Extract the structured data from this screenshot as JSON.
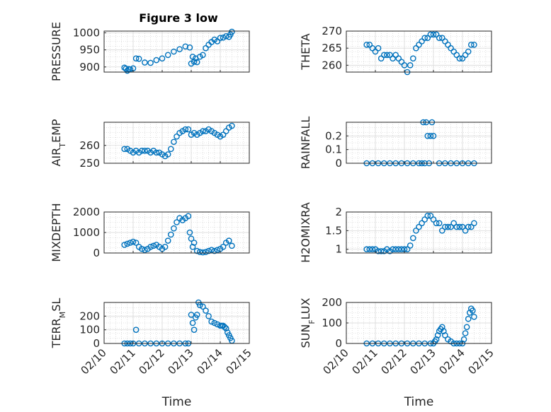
{
  "figure": {
    "title": "Figure 3 low"
  },
  "colors": {
    "marker": "#0072BD",
    "axis": "#262626",
    "grid": "#d9d9d9",
    "minor_grid": "#c8c8c8"
  },
  "chart_data": [
    {
      "type": "scatter",
      "ylabel": "PRESSURE",
      "ylim": [
        885,
        1005
      ],
      "yticks": [
        900,
        950,
        1000
      ],
      "xlim": [
        0,
        5
      ],
      "xticks": [
        "02/10",
        "02/11",
        "02/12",
        "02/13",
        "02/14",
        "02/15"
      ],
      "xlabel": "",
      "grid": "on (major + minor dotted)",
      "x": [
        0.7,
        0.75,
        0.8,
        0.85,
        0.9,
        1.0,
        1.1,
        1.2,
        1.4,
        1.6,
        1.8,
        2.0,
        2.2,
        2.4,
        2.6,
        2.8,
        2.95,
        3.0,
        3.05,
        3.1,
        3.15,
        3.2,
        3.3,
        3.4,
        3.5,
        3.6,
        3.7,
        3.8,
        3.9,
        4.0,
        4.1,
        4.2,
        4.3,
        4.35,
        4.4
      ],
      "y": [
        898,
        895,
        889,
        894,
        893,
        896,
        925,
        924,
        913,
        912,
        920,
        925,
        935,
        945,
        952,
        960,
        957,
        910,
        930,
        915,
        925,
        914,
        930,
        935,
        955,
        965,
        973,
        980,
        975,
        985,
        986,
        990,
        988,
        995,
        1003
      ]
    },
    {
      "type": "scatter",
      "ylabel": "THETA",
      "ylim": [
        258,
        270
      ],
      "yticks": [
        260,
        265,
        270
      ],
      "xlim": [
        0,
        5
      ],
      "xticks": [
        "02/10",
        "02/11",
        "02/12",
        "02/13",
        "02/14",
        "02/15"
      ],
      "xlabel": "",
      "grid": "on (major + minor dotted)",
      "x": [
        0.7,
        0.8,
        0.9,
        1.0,
        1.1,
        1.2,
        1.3,
        1.4,
        1.5,
        1.6,
        1.7,
        1.8,
        1.9,
        2.0,
        2.1,
        2.2,
        2.3,
        2.4,
        2.5,
        2.6,
        2.7,
        2.8,
        2.9,
        3.0,
        3.1,
        3.2,
        3.3,
        3.4,
        3.5,
        3.6,
        3.7,
        3.8,
        3.9,
        4.0,
        4.1,
        4.2,
        4.3,
        4.4
      ],
      "y": [
        266,
        266,
        265,
        264,
        265,
        262,
        263,
        263,
        263,
        262,
        263,
        262,
        261,
        260,
        258,
        260,
        262,
        265,
        266,
        267,
        268,
        268,
        269,
        269,
        269,
        268,
        268,
        267,
        266,
        265,
        264,
        263,
        262,
        262,
        263,
        264,
        266,
        266
      ]
    },
    {
      "type": "scatter",
      "ylabel": "AIR_TEMP",
      "ylim": [
        250,
        273
      ],
      "yticks": [
        250,
        260
      ],
      "xlim": [
        0,
        5
      ],
      "xticks": [
        "02/10",
        "02/11",
        "02/12",
        "02/13",
        "02/14",
        "02/15"
      ],
      "xlabel": "",
      "grid": "on (major + minor dotted)",
      "x": [
        0.7,
        0.8,
        0.9,
        1.0,
        1.1,
        1.2,
        1.3,
        1.4,
        1.5,
        1.6,
        1.7,
        1.8,
        1.9,
        2.0,
        2.1,
        2.2,
        2.3,
        2.4,
        2.5,
        2.6,
        2.7,
        2.8,
        2.9,
        3.0,
        3.1,
        3.2,
        3.3,
        3.4,
        3.5,
        3.6,
        3.7,
        3.8,
        3.9,
        4.0,
        4.1,
        4.2,
        4.3,
        4.4
      ],
      "y": [
        258,
        258,
        257,
        256,
        257,
        256,
        257,
        257,
        257,
        256,
        257,
        256,
        256,
        255,
        254,
        255,
        258,
        262,
        265,
        267,
        268,
        269,
        269,
        266,
        267,
        266,
        267,
        268,
        268,
        269,
        268,
        267,
        266,
        265,
        266,
        268,
        270,
        271
      ]
    },
    {
      "type": "scatter",
      "ylabel": "RAINFALL",
      "ylim": [
        0,
        0.3
      ],
      "yticks": [
        0,
        0.1,
        0.2
      ],
      "xlim": [
        0,
        5
      ],
      "xticks": [
        "02/10",
        "02/11",
        "02/12",
        "02/13",
        "02/14",
        "02/15"
      ],
      "xlabel": "",
      "grid": "on (major + minor dotted)",
      "x": [
        0.7,
        0.9,
        1.1,
        1.3,
        1.5,
        1.7,
        1.9,
        2.1,
        2.3,
        2.5,
        2.6,
        2.65,
        2.7,
        2.75,
        2.8,
        2.85,
        2.9,
        2.95,
        3.0,
        3.2,
        3.4,
        3.6,
        3.8,
        4.0,
        4.2,
        4.4
      ],
      "y": [
        0,
        0,
        0,
        0,
        0,
        0,
        0,
        0,
        0,
        0,
        0,
        0.3,
        0,
        0.3,
        0.2,
        0,
        0.2,
        0.3,
        0.2,
        0,
        0,
        0,
        0,
        0,
        0,
        0
      ]
    },
    {
      "type": "scatter",
      "ylabel": "MIXDEPTH",
      "ylim": [
        0,
        2000
      ],
      "yticks": [
        0,
        1000,
        2000
      ],
      "xlim": [
        0,
        5
      ],
      "xticks": [
        "02/10",
        "02/11",
        "02/12",
        "02/13",
        "02/14",
        "02/15"
      ],
      "xlabel": "",
      "grid": "on (major + minor dotted)",
      "x": [
        0.7,
        0.8,
        0.9,
        1.0,
        1.1,
        1.2,
        1.3,
        1.4,
        1.5,
        1.6,
        1.7,
        1.8,
        1.9,
        2.0,
        2.1,
        2.2,
        2.3,
        2.4,
        2.5,
        2.6,
        2.7,
        2.8,
        2.9,
        2.95,
        3.0,
        3.05,
        3.1,
        3.2,
        3.3,
        3.4,
        3.5,
        3.6,
        3.7,
        3.8,
        3.9,
        4.0,
        4.1,
        4.2,
        4.3,
        4.4
      ],
      "y": [
        400,
        450,
        500,
        550,
        500,
        300,
        200,
        150,
        200,
        300,
        350,
        400,
        300,
        200,
        300,
        600,
        900,
        1200,
        1500,
        1700,
        1600,
        1700,
        1800,
        1000,
        700,
        300,
        500,
        100,
        50,
        30,
        50,
        100,
        150,
        100,
        150,
        200,
        300,
        500,
        600,
        350
      ]
    },
    {
      "type": "scatter",
      "ylabel": "H2OMIXRA",
      "ylim": [
        0.9,
        2.0
      ],
      "yticks": [
        1,
        1.5,
        2
      ],
      "xlim": [
        0,
        5
      ],
      "xticks": [
        "02/10",
        "02/11",
        "02/12",
        "02/13",
        "02/14",
        "02/15"
      ],
      "xlabel": "",
      "grid": "on (major + minor dotted)",
      "x": [
        0.7,
        0.8,
        0.9,
        1.0,
        1.1,
        1.2,
        1.3,
        1.4,
        1.5,
        1.6,
        1.7,
        1.8,
        1.9,
        2.0,
        2.1,
        2.2,
        2.3,
        2.4,
        2.5,
        2.6,
        2.7,
        2.8,
        2.9,
        3.0,
        3.1,
        3.2,
        3.3,
        3.4,
        3.5,
        3.6,
        3.7,
        3.8,
        3.9,
        4.0,
        4.1,
        4.2,
        4.3,
        4.4
      ],
      "y": [
        1.0,
        1.0,
        1.0,
        1.0,
        0.95,
        0.95,
        0.95,
        1.0,
        0.95,
        1.0,
        1.0,
        1.0,
        1.0,
        1.0,
        1.0,
        1.1,
        1.3,
        1.5,
        1.6,
        1.7,
        1.8,
        1.9,
        1.9,
        1.8,
        1.7,
        1.7,
        1.5,
        1.6,
        1.6,
        1.6,
        1.7,
        1.6,
        1.6,
        1.6,
        1.5,
        1.6,
        1.6,
        1.7
      ]
    },
    {
      "type": "scatter",
      "ylabel": "TERR_MSL",
      "ylim": [
        0,
        300
      ],
      "yticks": [
        0,
        100,
        200
      ],
      "xlim": [
        0,
        5
      ],
      "xticks": [
        "02/10",
        "02/11",
        "02/12",
        "02/13",
        "02/14",
        "02/15"
      ],
      "xlabel": "Time",
      "grid": "on (major + minor dotted)",
      "x": [
        0.7,
        0.8,
        0.9,
        1.0,
        1.1,
        1.2,
        1.4,
        1.6,
        1.8,
        2.0,
        2.2,
        2.4,
        2.6,
        2.8,
        2.9,
        3.0,
        3.05,
        3.1,
        3.15,
        3.2,
        3.25,
        3.3,
        3.4,
        3.5,
        3.6,
        3.7,
        3.8,
        3.9,
        4.0,
        4.05,
        4.1,
        4.15,
        4.2,
        4.25,
        4.3,
        4.35,
        4.4
      ],
      "y": [
        0,
        0,
        0,
        0,
        100,
        0,
        0,
        0,
        0,
        0,
        0,
        0,
        0,
        0,
        0,
        210,
        150,
        100,
        190,
        210,
        300,
        280,
        270,
        240,
        200,
        160,
        150,
        140,
        130,
        130,
        130,
        120,
        110,
        80,
        60,
        40,
        20
      ]
    },
    {
      "type": "scatter",
      "ylabel": "SUN_FLUX",
      "ylim": [
        0,
        200
      ],
      "yticks": [
        0,
        100,
        200
      ],
      "xlim": [
        0,
        5
      ],
      "xticks": [
        "02/10",
        "02/11",
        "02/12",
        "02/13",
        "02/14",
        "02/15"
      ],
      "xlabel": "Time",
      "grid": "on (major + minor dotted)",
      "x": [
        0.7,
        0.9,
        1.1,
        1.3,
        1.5,
        1.7,
        1.9,
        2.1,
        2.3,
        2.5,
        2.7,
        2.9,
        3.0,
        3.05,
        3.1,
        3.15,
        3.2,
        3.25,
        3.3,
        3.35,
        3.4,
        3.5,
        3.6,
        3.7,
        3.8,
        3.9,
        4.0,
        4.05,
        4.1,
        4.15,
        4.2,
        4.25,
        4.3,
        4.35,
        4.4
      ],
      "y": [
        0,
        0,
        0,
        0,
        0,
        0,
        0,
        0,
        0,
        0,
        0,
        0,
        0,
        10,
        20,
        40,
        60,
        70,
        80,
        60,
        40,
        20,
        10,
        0,
        0,
        0,
        0,
        20,
        50,
        80,
        120,
        150,
        170,
        160,
        130
      ]
    }
  ]
}
